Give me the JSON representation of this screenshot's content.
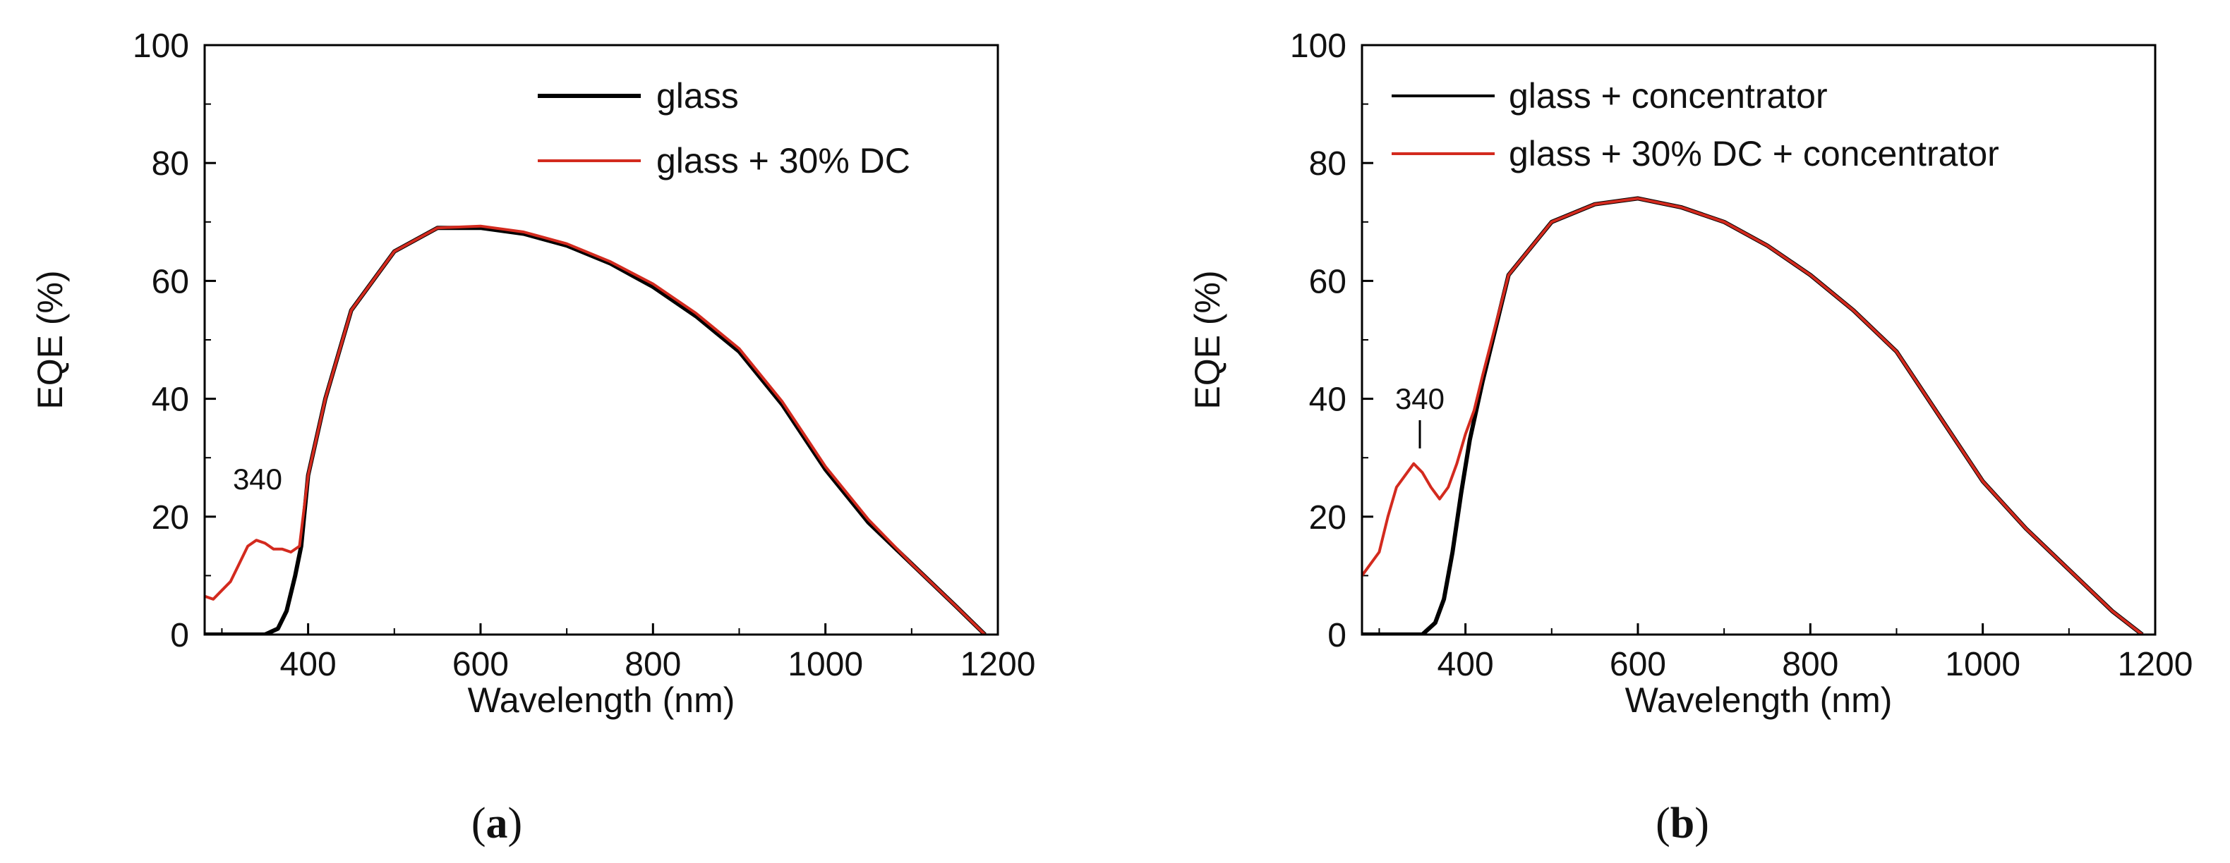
{
  "chart_data": [
    {
      "type": "line",
      "panel_label": "a",
      "xlabel": "Wavelength (nm)",
      "ylabel": "EQE (%)",
      "xlim": [
        280,
        1200
      ],
      "ylim": [
        0,
        100
      ],
      "xticks": [
        400,
        600,
        800,
        1000,
        1200
      ],
      "yticks": [
        0,
        20,
        40,
        60,
        80,
        100
      ],
      "legend_position": "top-right",
      "annotation": {
        "text": "340",
        "x": 340,
        "y": 16
      },
      "series": [
        {
          "name": "glass",
          "color": "#000000",
          "x": [
            280,
            320,
            350,
            365,
            375,
            385,
            392,
            400,
            420,
            450,
            500,
            550,
            600,
            650,
            700,
            750,
            800,
            850,
            900,
            950,
            1000,
            1050,
            1100,
            1150,
            1185
          ],
          "y": [
            0,
            0,
            0,
            1,
            4,
            10,
            15,
            27,
            40,
            55,
            65,
            69,
            69,
            68,
            66,
            63,
            59,
            54,
            48,
            39,
            28,
            19,
            12,
            5,
            0
          ]
        },
        {
          "name": "glass + 30% DC",
          "color": "#d32a1e",
          "x": [
            280,
            290,
            300,
            310,
            320,
            330,
            340,
            350,
            360,
            370,
            380,
            390,
            400,
            420,
            450,
            500,
            550,
            600,
            650,
            700,
            750,
            800,
            850,
            900,
            950,
            1000,
            1050,
            1100,
            1150,
            1185
          ],
          "y": [
            6.5,
            6,
            7.5,
            9,
            12,
            15,
            16,
            15.5,
            14.5,
            14.5,
            14,
            15,
            27,
            40,
            55,
            65,
            69,
            69.3,
            68.3,
            66.3,
            63.3,
            59.5,
            54.5,
            48.5,
            39.5,
            28.5,
            19.5,
            12,
            5,
            0
          ]
        }
      ]
    },
    {
      "type": "line",
      "panel_label": "b",
      "xlabel": "Wavelength (nm)",
      "ylabel": "EQE (%)",
      "xlim": [
        280,
        1200
      ],
      "ylim": [
        0,
        100
      ],
      "xticks": [
        400,
        600,
        800,
        1000,
        1200
      ],
      "yticks": [
        0,
        20,
        40,
        60,
        80,
        100
      ],
      "legend_position": "top-right",
      "annotation": {
        "text": "340",
        "x": 340,
        "y": 29
      },
      "series": [
        {
          "name": "glass + concentrator",
          "color": "#000000",
          "x": [
            280,
            320,
            350,
            365,
            375,
            385,
            395,
            405,
            420,
            450,
            500,
            550,
            600,
            650,
            700,
            750,
            800,
            850,
            900,
            950,
            1000,
            1050,
            1100,
            1150,
            1185
          ],
          "y": [
            0,
            0,
            0,
            2,
            6,
            14,
            24,
            33,
            43,
            61,
            70,
            73,
            74,
            72.5,
            70,
            66,
            61,
            55,
            48,
            37,
            26,
            18,
            11,
            4,
            0
          ]
        },
        {
          "name": "glass + 30% DC + concentrator",
          "color": "#d32a1e",
          "x": [
            280,
            290,
            300,
            310,
            320,
            330,
            340,
            350,
            360,
            370,
            380,
            390,
            400,
            410,
            420,
            450,
            500,
            550,
            600,
            650,
            700,
            750,
            800,
            850,
            900,
            950,
            1000,
            1050,
            1100,
            1150,
            1185
          ],
          "y": [
            10,
            12,
            14,
            20,
            25,
            27,
            29,
            27.5,
            25,
            23,
            25,
            29,
            34,
            38,
            44,
            61,
            70,
            73,
            74,
            72.5,
            70,
            66,
            61,
            55,
            48,
            37,
            26,
            18,
            11,
            4,
            0
          ]
        }
      ]
    }
  ]
}
